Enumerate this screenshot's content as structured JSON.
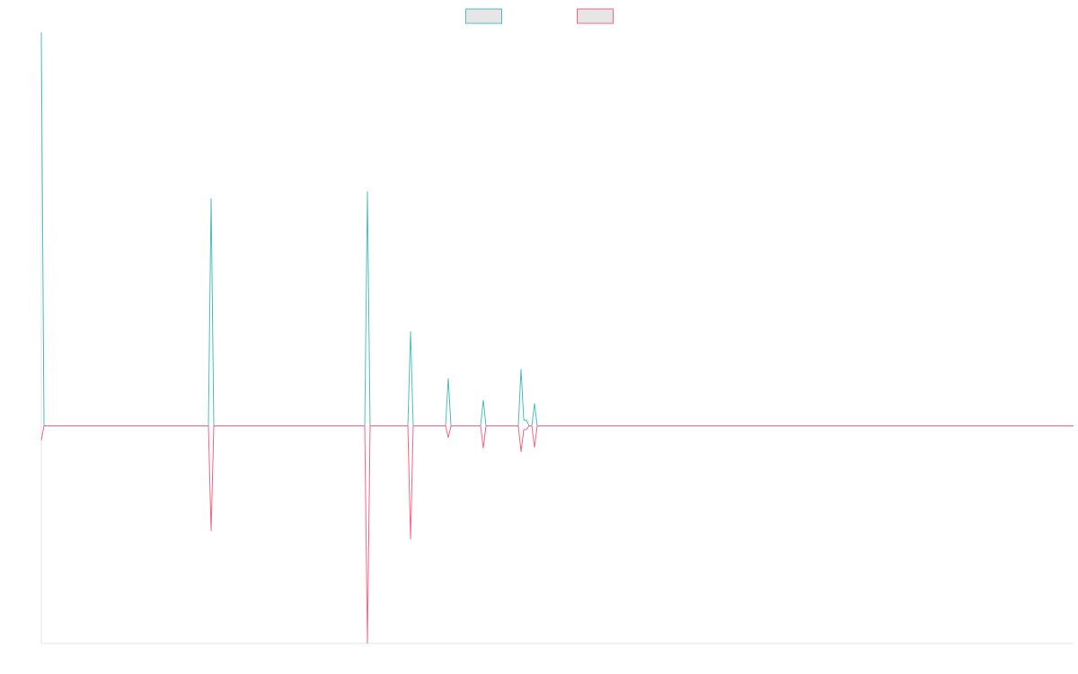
{
  "chart_data": {
    "type": "line",
    "x": [
      0,
      1,
      62,
      63,
      64,
      120,
      121,
      122,
      136,
      137,
      138,
      150,
      151,
      152,
      163,
      164,
      165,
      177,
      178,
      179,
      180,
      181,
      182,
      183,
      184,
      383
    ],
    "series": [
      {
        "color": "#4bc0c0",
        "values": [
          100,
          0,
          0,
          57.8,
          0,
          0,
          59.6,
          0,
          0,
          24.0,
          0,
          0,
          12.1,
          0,
          0,
          6.6,
          0,
          0,
          14.4,
          1.5,
          1.4,
          0,
          0,
          5.7,
          0,
          0
        ]
      },
      {
        "color": "#ff6384",
        "values": [
          -3.7,
          0,
          0,
          -26.7,
          0,
          0,
          -55.3,
          0,
          0,
          -28.8,
          0,
          0,
          -3.0,
          0,
          0,
          -5.7,
          0,
          0,
          -6.6,
          -1.0,
          -0.9,
          0,
          0,
          -5.5,
          0,
          0
        ]
      }
    ],
    "xlim": [
      0,
      383
    ],
    "ylim": [
      -55.3,
      100
    ],
    "legend": "top"
  }
}
